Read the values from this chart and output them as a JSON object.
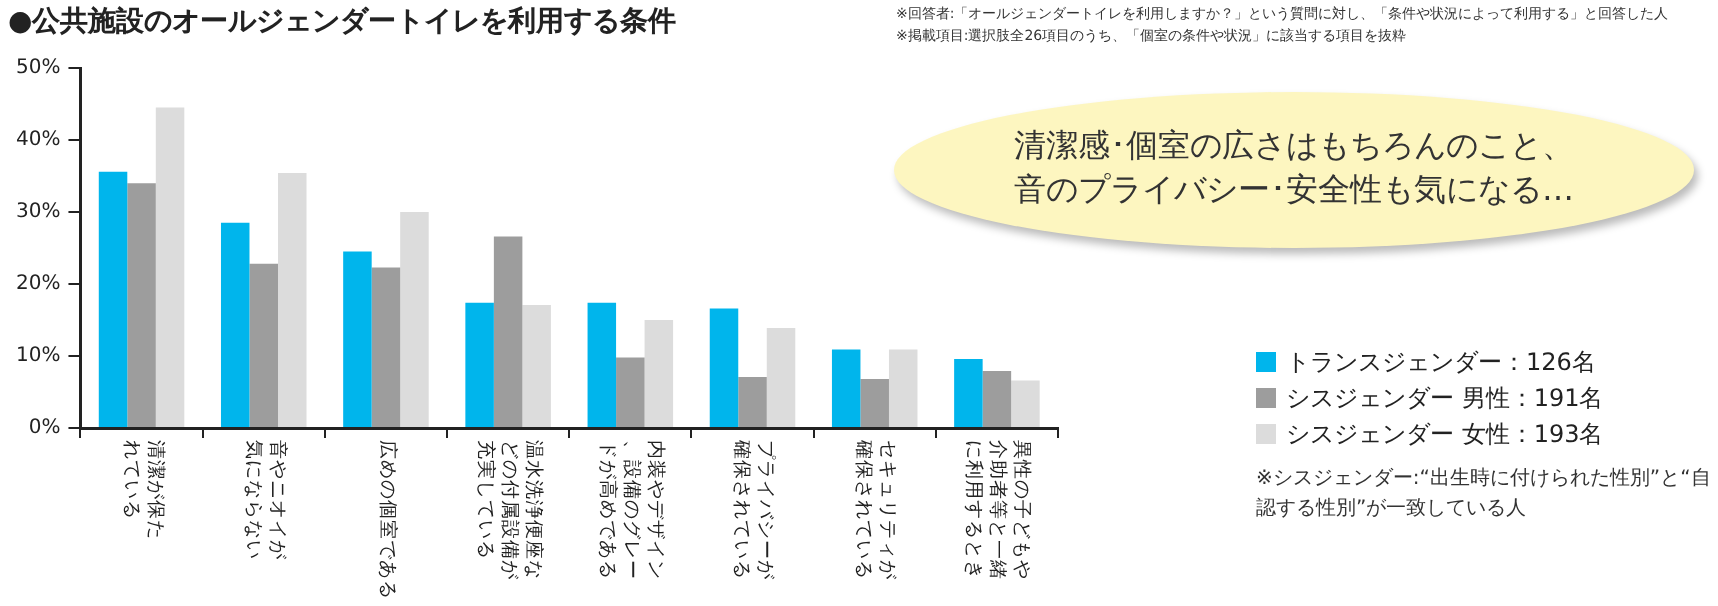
{
  "chart_data": {
    "type": "bar",
    "title": "●公共施設のオールジェンダートイレを利用する条件",
    "categories": [
      "清潔が保たれている",
      "音やニオイが気にならない",
      "広めの個室である",
      "温水洗浄便座などの付属設備が充実している",
      "内装やデザイン、設備のグレードが高めである",
      "プライバシーが確保されている",
      "セキュリティが確保されている",
      "異性の子どもや介助者等と一緒に利用するとき"
    ],
    "series": [
      {
        "name": "トランスジェンダー：126名",
        "color": "#00b5ec",
        "values": [
          35.6,
          28.5,
          24.5,
          17.4,
          17.4,
          16.6,
          10.9,
          9.6
        ]
      },
      {
        "name": "シスジェンダー 男性：191名",
        "color": "#9d9d9d",
        "values": [
          34.0,
          22.8,
          22.3,
          26.6,
          9.8,
          7.1,
          6.8,
          7.9
        ]
      },
      {
        "name": "シスジェンダー 女性：193名",
        "color": "#dcdcdc",
        "values": [
          44.5,
          35.4,
          30.0,
          17.1,
          15.0,
          13.9,
          10.9,
          6.6
        ]
      }
    ],
    "ylim": [
      0,
      50
    ],
    "yticks": [
      {
        "value": 0,
        "label": "0%"
      },
      {
        "value": 10,
        "label": "10%"
      },
      {
        "value": 20,
        "label": "20%"
      },
      {
        "value": 30,
        "label": "30%"
      },
      {
        "value": 40,
        "label": "40%"
      },
      {
        "value": 50,
        "label": "50%"
      }
    ],
    "grid": false,
    "legend": "right",
    "annotations": [
      "※回答者:「オールジェンダートイレを利用しますか？」という質問に対し、「条件や状況によって利用する」と回答した人",
      "※掲載項目:選択肢全26項目のうち、「個室の条件や状況」に該当する項目を抜粋",
      "清潔感･個室の広さはもちろんのこと、音のプライバシー･安全性も気になる…",
      "※シスジェンダー:“出生時に付けられた性別”と“自認する性別”が一致している人"
    ]
  }
}
